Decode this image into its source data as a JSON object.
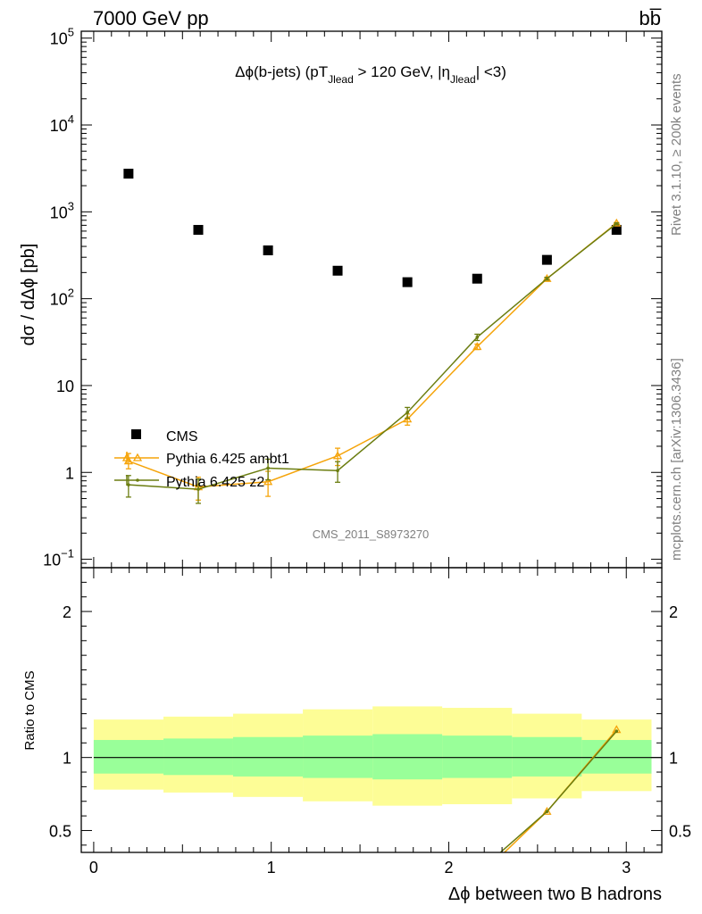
{
  "header": {
    "energy_label": "7000 GeV pp",
    "process_label": "bb̅"
  },
  "side": {
    "rivet_label": "Rivet 3.1.10, ≥ 200k events",
    "mcplots_label": "mcplots.cern.ch [arXiv:1306.3436]"
  },
  "chart_data": [
    {
      "type": "scatter",
      "title": "Δϕ(b-jets) (pT_Jlead > 120 GeV, |η_Jlead| <3)",
      "title_parts": {
        "a": "Δϕ(b-jets) (pT",
        "a_sub": "Jlead",
        "b": " >  120 GeV, |η",
        "b_sub": "Jlead",
        "c": "| <3)"
      },
      "ylabel": "dσ / dΔϕ [pb]",
      "yscale": "log",
      "ylim": [
        0.08,
        120000
      ],
      "xlim": [
        -0.07,
        3.2
      ],
      "y_ticks": [
        {
          "v": 0.1,
          "base": "10",
          "exp": "−1"
        },
        {
          "v": 1,
          "base": "1",
          "exp": ""
        },
        {
          "v": 10,
          "base": "10",
          "exp": ""
        },
        {
          "v": 100,
          "base": "10",
          "exp": "2"
        },
        {
          "v": 1000,
          "base": "10",
          "exp": "3"
        },
        {
          "v": 10000,
          "base": "10",
          "exp": "4"
        },
        {
          "v": 100000,
          "base": "10",
          "exp": "5"
        }
      ],
      "watermark": "CMS_2011_S8973270",
      "legend_position": "bottom-left",
      "x": [
        0.196,
        0.589,
        0.982,
        1.374,
        1.767,
        2.16,
        2.553,
        2.945
      ],
      "bin_edges": [
        0,
        0.393,
        0.785,
        1.178,
        1.571,
        1.963,
        2.356,
        2.749,
        3.142
      ],
      "series": [
        {
          "name": "CMS",
          "values": [
            2750,
            620,
            360,
            210,
            155,
            170,
            280,
            620
          ],
          "color": "#000000",
          "marker": "square"
        },
        {
          "name": "Pythia 6.425 ambt1",
          "values": [
            1.35,
            0.68,
            0.78,
            1.55,
            4.1,
            28,
            170,
            740
          ],
          "err_low": [
            0.25,
            0.2,
            0.25,
            0.35,
            0.6,
            2,
            6,
            15
          ],
          "err_high": [
            0.3,
            0.2,
            0.25,
            0.35,
            0.6,
            2,
            6,
            15
          ],
          "color": "#f5a40a",
          "marker": "triangle"
        },
        {
          "name": "Pythia 6.425 z2",
          "values": [
            0.72,
            0.64,
            1.12,
            1.05,
            4.9,
            36,
            170,
            730
          ],
          "err_low": [
            0.2,
            0.2,
            0.3,
            0.28,
            0.7,
            3,
            6,
            15
          ],
          "err_high": [
            0.2,
            0.2,
            0.3,
            0.28,
            0.7,
            3,
            6,
            15
          ],
          "color": "#6b7d10",
          "marker": "dot"
        }
      ]
    },
    {
      "type": "line",
      "ylabel": "Ratio to CMS",
      "xlabel": "Δϕ between two B hadrons",
      "ylim": [
        0.35,
        2.3
      ],
      "xlim": [
        -0.07,
        3.2
      ],
      "x_ticks": [
        0,
        1,
        2,
        3
      ],
      "x_tick_labels": [
        "0",
        "1",
        "2",
        "3"
      ],
      "y_ticks": [
        0.5,
        1,
        2
      ],
      "y_tick_labels": [
        "0.5",
        "1",
        "2"
      ],
      "band_edges": [
        0,
        0.393,
        0.785,
        1.178,
        1.571,
        1.963,
        2.356,
        2.749,
        3.142
      ],
      "band_green": [
        [
          0.89,
          1.12
        ],
        [
          0.88,
          1.13
        ],
        [
          0.87,
          1.14
        ],
        [
          0.86,
          1.15
        ],
        [
          0.85,
          1.16
        ],
        [
          0.86,
          1.15
        ],
        [
          0.87,
          1.14
        ],
        [
          0.89,
          1.12
        ]
      ],
      "band_yellow": [
        [
          0.78,
          1.26
        ],
        [
          0.76,
          1.28
        ],
        [
          0.73,
          1.3
        ],
        [
          0.7,
          1.33
        ],
        [
          0.67,
          1.35
        ],
        [
          0.68,
          1.34
        ],
        [
          0.72,
          1.3
        ],
        [
          0.77,
          1.26
        ]
      ],
      "series": [
        {
          "name": "Pythia 6.425 ambt1",
          "x": [
            2.16,
            2.553,
            2.945
          ],
          "values": [
            0.17,
            0.63,
            1.19
          ],
          "color": "#f5a40a"
        },
        {
          "name": "Pythia 6.425 z2",
          "x": [
            2.16,
            2.553,
            2.945
          ],
          "values": [
            0.21,
            0.63,
            1.18
          ],
          "color": "#6b7d10"
        }
      ]
    }
  ]
}
